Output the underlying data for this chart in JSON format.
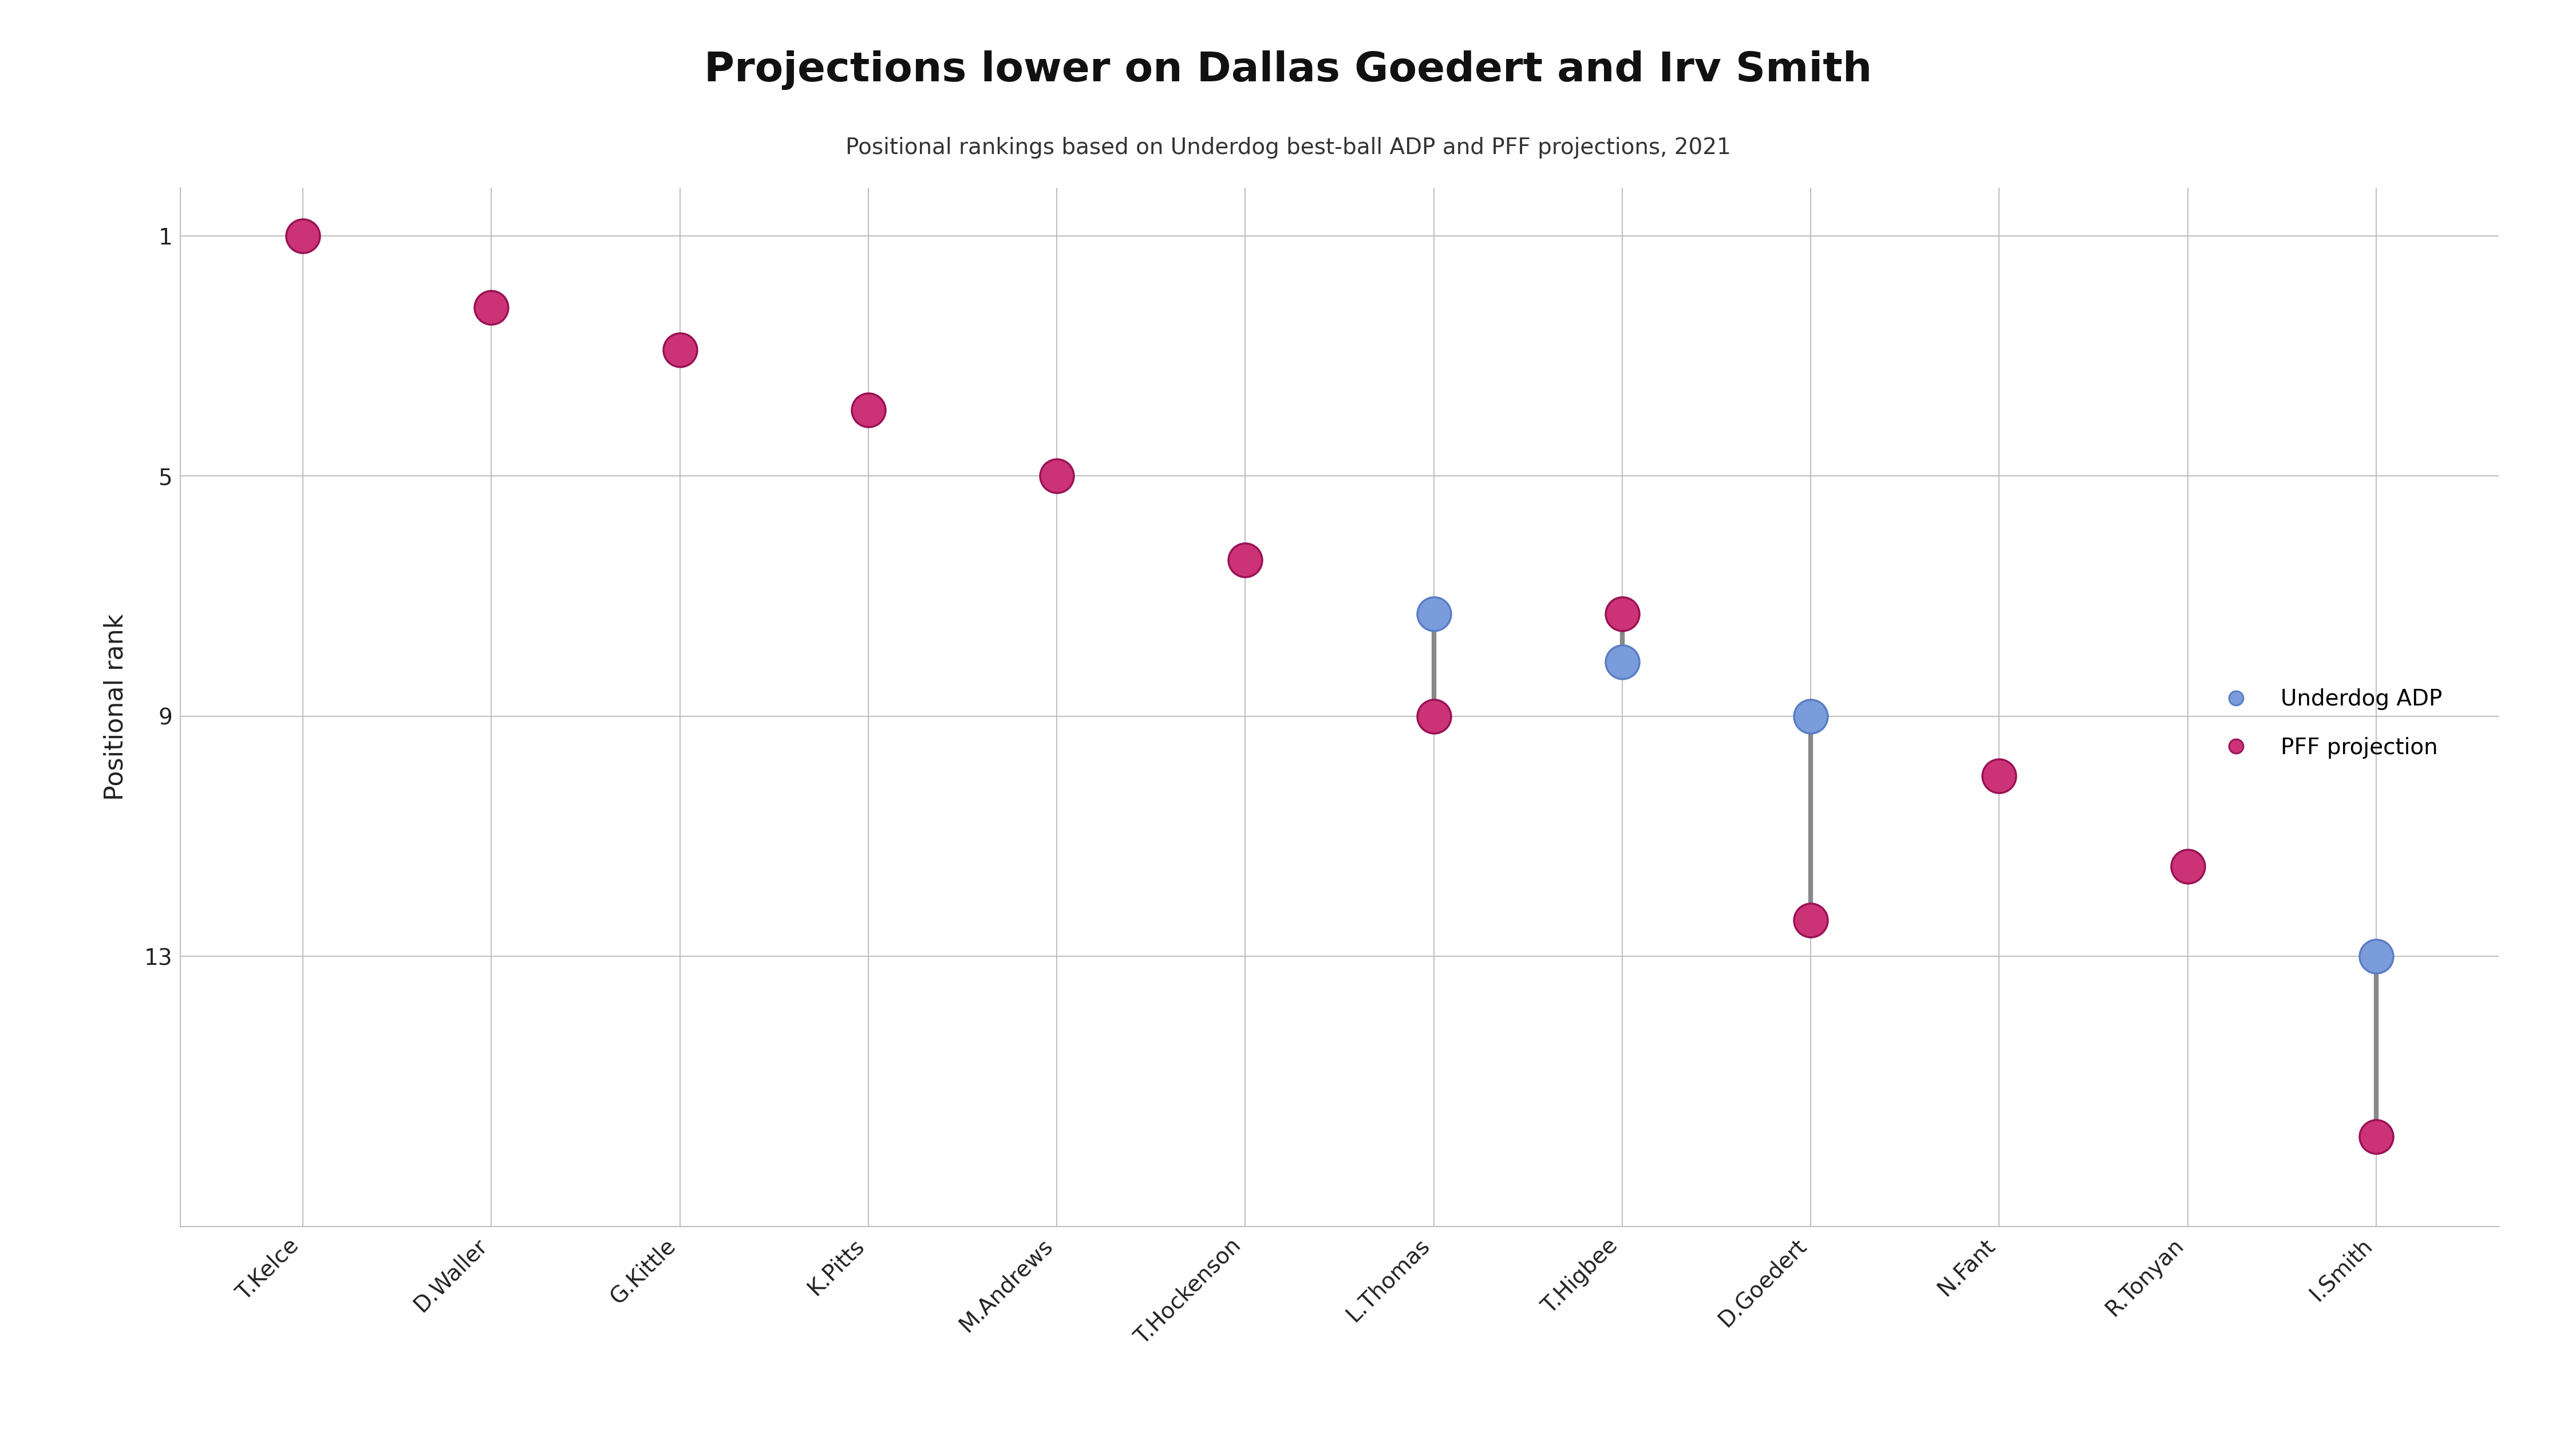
{
  "title": "Projections lower on Dallas Goedert and Irv Smith",
  "subtitle": "Positional rankings based on Underdog best-ball ADP and PFF projections, 2021",
  "ylabel": "Positional rank",
  "players": [
    "T.Kelce",
    "D.Waller",
    "G.Kittle",
    "K.Pitts",
    "M.Andrews",
    "T.Hockenson",
    "L.Thomas",
    "T.Higbee",
    "D.Goedert",
    "N.Fant",
    "R.Tonyan",
    "I.Smith"
  ],
  "adp_rank": [
    null,
    null,
    null,
    null,
    null,
    null,
    7.3,
    8.1,
    9.0,
    null,
    null,
    13.0
  ],
  "pff_rank": [
    1.0,
    2.2,
    2.9,
    3.9,
    5.0,
    6.4,
    9.0,
    7.3,
    12.4,
    10.0,
    11.5,
    16.0
  ],
  "background_color": "#ffffff",
  "adp_color": "#7b9cdb",
  "adp_edge_color": "#5a7dc4",
  "pff_color": "#cc3377",
  "pff_edge_color": "#991155",
  "connector_color": "#888888",
  "title_fontsize": 52,
  "subtitle_fontsize": 28,
  "ylabel_fontsize": 32,
  "tick_fontsize": 28,
  "legend_fontsize": 28,
  "marker_size": 1800,
  "connector_linewidth": 6,
  "ylim_min": 0.2,
  "ylim_max": 17.5,
  "yticks": [
    1,
    5,
    9,
    13
  ],
  "grid_color": "#c0c0c0",
  "spine_color": "#c0c0c0"
}
